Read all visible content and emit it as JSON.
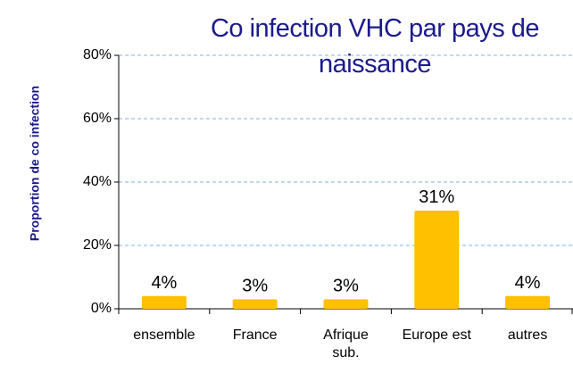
{
  "chart_data": {
    "type": "bar",
    "title": "Co infection VHC par pays de naissance",
    "y_label": "Proportion de co infection",
    "categories": [
      "ensemble",
      "France",
      "Afrique\nsub.",
      "Europe est",
      "autres"
    ],
    "values": [
      4,
      3,
      3,
      31,
      4
    ],
    "value_labels": [
      "4%",
      "3%",
      "3%",
      "31%",
      "4%"
    ],
    "color": "#ffc000",
    "ylim": [
      0,
      80
    ],
    "yticks": [
      {
        "value": 0,
        "label": "0%"
      },
      {
        "value": 20,
        "label": "20%"
      },
      {
        "value": 40,
        "label": "40%"
      },
      {
        "value": 60,
        "label": "60%"
      },
      {
        "value": 80,
        "label": "80%"
      }
    ],
    "grid": true
  }
}
